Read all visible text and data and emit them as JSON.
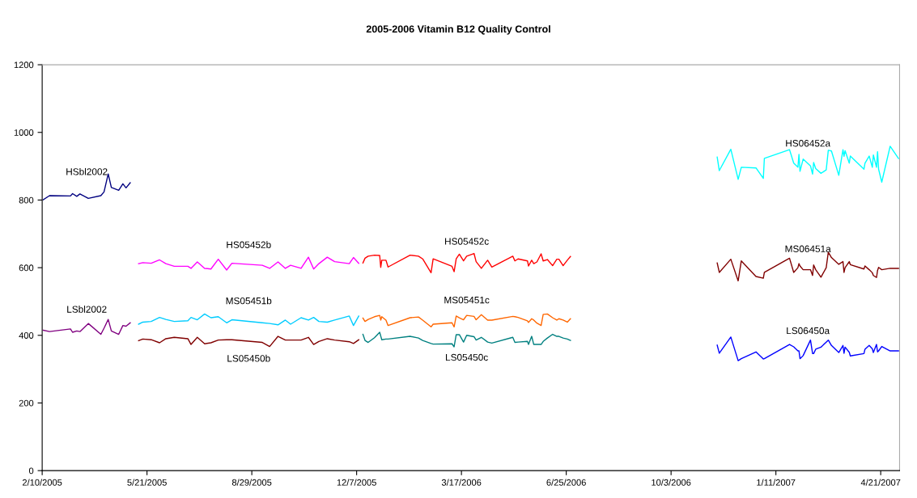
{
  "chart_data": {
    "type": "line",
    "title": "2005-2006 Vitamin B12 Quality Control",
    "xlim": [
      "2005-02-10",
      "2007-05-09"
    ],
    "ylim": [
      0,
      1200
    ],
    "yticks": [
      0,
      200,
      400,
      600,
      800,
      1000,
      1200
    ],
    "xticks": [
      {
        "value": "2005-02-10",
        "label": "2/10/2005"
      },
      {
        "value": "2005-05-21",
        "label": "5/21/2005"
      },
      {
        "value": "2005-08-29",
        "label": "8/29/2005"
      },
      {
        "value": "2005-12-07",
        "label": "12/7/2005"
      },
      {
        "value": "2006-03-17",
        "label": "3/17/2006"
      },
      {
        "value": "2006-06-25",
        "label": "6/25/2006"
      },
      {
        "value": "2006-10-03",
        "label": "10/3/2006"
      },
      {
        "value": "2007-01-11",
        "label": "1/11/2007"
      },
      {
        "value": "2007-04-21",
        "label": "4/21/2007"
      }
    ],
    "grid": false,
    "legend": false,
    "marker": "none",
    "line_style": "solid",
    "series": [
      {
        "name": "HSbl2002",
        "color": "#000080",
        "x": [
          "2005-02-11",
          "2005-02-17",
          "2005-03-09",
          "2005-03-11",
          "2005-03-15",
          "2005-03-18",
          "2005-03-26",
          "2005-04-07",
          "2005-04-10",
          "2005-04-14",
          "2005-04-17",
          "2005-04-24",
          "2005-04-28",
          "2005-05-01",
          "2005-05-05"
        ],
        "values": [
          801,
          813,
          812,
          819,
          811,
          818,
          805,
          813,
          824,
          877,
          837,
          829,
          848,
          836,
          851
        ]
      },
      {
        "name": "LSbl2002",
        "color": "#800080",
        "x": [
          "2005-02-11",
          "2005-02-17",
          "2005-03-09",
          "2005-03-11",
          "2005-03-15",
          "2005-03-18",
          "2005-03-26",
          "2005-04-07",
          "2005-04-10",
          "2005-04-14",
          "2005-04-17",
          "2005-04-24",
          "2005-04-28",
          "2005-05-01",
          "2005-05-05"
        ],
        "values": [
          415,
          411,
          419,
          409,
          413,
          411,
          435,
          403,
          421,
          447,
          413,
          403,
          429,
          427,
          437
        ]
      },
      {
        "name": "HS05452b",
        "color": "#ff00ff",
        "x": [
          "2005-05-13",
          "2005-05-17",
          "2005-05-25",
          "2005-06-02",
          "2005-06-08",
          "2005-06-16",
          "2005-06-29",
          "2005-07-02",
          "2005-07-08",
          "2005-07-15",
          "2005-07-21",
          "2005-07-28",
          "2005-08-05",
          "2005-08-10",
          "2005-09-08",
          "2005-09-15",
          "2005-09-23",
          "2005-09-30",
          "2005-10-05",
          "2005-10-15",
          "2005-10-22",
          "2005-10-27",
          "2005-11-01",
          "2005-11-09",
          "2005-11-16",
          "2005-11-30",
          "2005-12-04",
          "2005-12-09"
        ],
        "values": [
          612,
          615,
          613,
          623,
          612,
          604,
          604,
          598,
          617,
          598,
          596,
          625,
          593,
          613,
          607,
          598,
          617,
          598,
          607,
          598,
          631,
          596,
          612,
          631,
          618,
          612,
          630,
          613
        ]
      },
      {
        "name": "MS05451b",
        "color": "#00ccff",
        "x": [
          "2005-05-13",
          "2005-05-17",
          "2005-05-25",
          "2005-06-02",
          "2005-06-08",
          "2005-06-16",
          "2005-06-29",
          "2005-07-02",
          "2005-07-08",
          "2005-07-15",
          "2005-07-21",
          "2005-07-28",
          "2005-08-05",
          "2005-08-10",
          "2005-09-08",
          "2005-09-15",
          "2005-09-23",
          "2005-09-30",
          "2005-10-05",
          "2005-10-15",
          "2005-10-22",
          "2005-10-27",
          "2005-11-01",
          "2005-11-09",
          "2005-11-16",
          "2005-11-30",
          "2005-12-04",
          "2005-12-09"
        ],
        "values": [
          433,
          439,
          441,
          453,
          447,
          441,
          443,
          453,
          446,
          463,
          452,
          455,
          437,
          446,
          437,
          435,
          431,
          445,
          433,
          452,
          445,
          453,
          441,
          439,
          445,
          457,
          429,
          457
        ]
      },
      {
        "name": "LS05450b",
        "color": "#800000",
        "x": [
          "2005-05-13",
          "2005-05-17",
          "2005-05-25",
          "2005-06-02",
          "2005-06-08",
          "2005-06-16",
          "2005-06-29",
          "2005-07-02",
          "2005-07-08",
          "2005-07-15",
          "2005-07-21",
          "2005-07-28",
          "2005-08-05",
          "2005-08-10",
          "2005-09-08",
          "2005-09-15",
          "2005-09-23",
          "2005-09-30",
          "2005-10-05",
          "2005-10-15",
          "2005-10-22",
          "2005-10-27",
          "2005-11-01",
          "2005-11-09",
          "2005-11-16",
          "2005-11-30",
          "2005-12-04",
          "2005-12-09"
        ],
        "values": [
          384,
          389,
          387,
          378,
          390,
          394,
          390,
          373,
          394,
          375,
          378,
          386,
          387,
          387,
          379,
          367,
          397,
          386,
          386,
          386,
          394,
          373,
          382,
          390,
          386,
          381,
          376,
          387
        ]
      },
      {
        "name": "HS05452c",
        "color": "#ff0000",
        "x": [
          "2005-12-13",
          "2005-12-15",
          "2005-12-18",
          "2005-12-24",
          "2005-12-29",
          "2005-12-30",
          "2005-12-31",
          "2006-01-04",
          "2006-01-06",
          "2006-01-27",
          "2006-02-04",
          "2006-02-08",
          "2006-02-16",
          "2006-02-18",
          "2006-03-08",
          "2006-03-10",
          "2006-03-12",
          "2006-03-15",
          "2006-03-19",
          "2006-03-22",
          "2006-03-29",
          "2006-03-31",
          "2006-04-05",
          "2006-04-11",
          "2006-04-15",
          "2006-05-05",
          "2006-05-07",
          "2006-05-10",
          "2006-05-19",
          "2006-05-20",
          "2006-05-23",
          "2006-05-25",
          "2006-05-28",
          "2006-06-01",
          "2006-06-03",
          "2006-06-07",
          "2006-06-12",
          "2006-06-16",
          "2006-06-18",
          "2006-06-22",
          "2006-06-26",
          "2006-06-29"
        ],
        "values": [
          614,
          628,
          634,
          637,
          636,
          601,
          622,
          622,
          602,
          637,
          634,
          626,
          585,
          626,
          604,
          588,
          626,
          640,
          620,
          634,
          642,
          618,
          598,
          622,
          602,
          634,
          620,
          626,
          620,
          605,
          622,
          612,
          617,
          641,
          620,
          624,
          606,
          625,
          625,
          606,
          622,
          633
        ]
      },
      {
        "name": "MS05451c",
        "color": "#ff6600",
        "x": [
          "2005-12-13",
          "2005-12-15",
          "2005-12-18",
          "2005-12-24",
          "2005-12-29",
          "2005-12-30",
          "2005-12-31",
          "2006-01-04",
          "2006-01-06",
          "2006-01-27",
          "2006-02-04",
          "2006-02-08",
          "2006-02-16",
          "2006-02-18",
          "2006-03-08",
          "2006-03-10",
          "2006-03-12",
          "2006-03-15",
          "2006-03-19",
          "2006-03-22",
          "2006-03-29",
          "2006-03-31",
          "2006-04-05",
          "2006-04-11",
          "2006-04-15",
          "2006-05-05",
          "2006-05-07",
          "2006-05-10",
          "2006-05-19",
          "2006-05-20",
          "2006-05-23",
          "2006-05-25",
          "2006-05-28",
          "2006-06-01",
          "2006-06-03",
          "2006-06-07",
          "2006-06-12",
          "2006-06-16",
          "2006-06-18",
          "2006-06-22",
          "2006-06-26",
          "2006-06-29"
        ],
        "values": [
          451,
          441,
          447,
          455,
          459,
          445,
          455,
          445,
          429,
          452,
          454,
          445,
          425,
          433,
          437,
          425,
          457,
          452,
          446,
          459,
          456,
          446,
          461,
          445,
          445,
          456,
          455,
          453,
          443,
          438,
          449,
          445,
          436,
          429,
          462,
          463,
          452,
          445,
          449,
          445,
          439,
          449
        ]
      },
      {
        "name": "LS05450c",
        "color": "#008080",
        "x": [
          "2005-12-13",
          "2005-12-15",
          "2005-12-18",
          "2005-12-24",
          "2005-12-29",
          "2005-12-30",
          "2005-12-31",
          "2006-01-04",
          "2006-01-06",
          "2006-01-27",
          "2006-02-04",
          "2006-02-08",
          "2006-02-16",
          "2006-02-18",
          "2006-03-08",
          "2006-03-10",
          "2006-03-12",
          "2006-03-15",
          "2006-03-19",
          "2006-03-22",
          "2006-03-29",
          "2006-03-31",
          "2006-04-05",
          "2006-04-11",
          "2006-04-15",
          "2006-05-05",
          "2006-05-07",
          "2006-05-10",
          "2006-05-19",
          "2006-05-20",
          "2006-05-23",
          "2006-05-25",
          "2006-05-28",
          "2006-06-01",
          "2006-06-03",
          "2006-06-07",
          "2006-06-12",
          "2006-06-16",
          "2006-06-18",
          "2006-06-22",
          "2006-06-26",
          "2006-06-29"
        ],
        "values": [
          403,
          385,
          379,
          393,
          409,
          398,
          387,
          389,
          389,
          397,
          392,
          385,
          376,
          374,
          375,
          366,
          402,
          402,
          380,
          400,
          396,
          386,
          394,
          380,
          377,
          394,
          379,
          380,
          382,
          373,
          397,
          373,
          373,
          373,
          382,
          392,
          403,
          397,
          397,
          392,
          389,
          385
        ]
      },
      {
        "name": "HS06452a",
        "color": "#00ffff",
        "x": [
          "2006-11-16",
          "2006-11-18",
          "2006-11-29",
          "2006-12-06",
          "2006-12-09",
          "2006-12-23",
          "2006-12-30",
          "2006-12-31",
          "2007-01-24",
          "2007-01-28",
          "2007-02-01",
          "2007-02-02",
          "2007-02-03",
          "2007-02-06",
          "2007-02-13",
          "2007-02-15",
          "2007-02-16",
          "2007-02-18",
          "2007-02-23",
          "2007-02-28",
          "2007-03-02",
          "2007-03-05",
          "2007-03-12",
          "2007-03-16",
          "2007-03-17",
          "2007-03-18",
          "2007-03-22",
          "2007-03-23",
          "2007-04-05",
          "2007-04-06",
          "2007-04-10",
          "2007-04-13",
          "2007-04-14",
          "2007-04-17",
          "2007-04-18",
          "2007-04-19",
          "2007-04-22",
          "2007-04-30",
          "2007-05-08"
        ],
        "values": [
          927,
          887,
          950,
          861,
          897,
          895,
          864,
          923,
          949,
          909,
          897,
          935,
          885,
          921,
          901,
          877,
          911,
          893,
          879,
          889,
          947,
          945,
          873,
          949,
          929,
          946,
          909,
          930,
          891,
          909,
          930,
          897,
          933,
          897,
          943,
          891,
          853,
          959,
          923
        ]
      },
      {
        "name": "MS06451a",
        "color": "#800000",
        "x": [
          "2006-11-16",
          "2006-11-18",
          "2006-11-29",
          "2006-12-06",
          "2006-12-09",
          "2006-12-23",
          "2006-12-30",
          "2006-12-31",
          "2007-01-24",
          "2007-01-28",
          "2007-02-01",
          "2007-02-02",
          "2007-02-03",
          "2007-02-06",
          "2007-02-13",
          "2007-02-15",
          "2007-02-16",
          "2007-02-18",
          "2007-02-23",
          "2007-02-28",
          "2007-03-02",
          "2007-03-05",
          "2007-03-12",
          "2007-03-16",
          "2007-03-17",
          "2007-03-18",
          "2007-03-22",
          "2007-03-23",
          "2007-04-05",
          "2007-04-06",
          "2007-04-10",
          "2007-04-13",
          "2007-04-14",
          "2007-04-17",
          "2007-04-18",
          "2007-04-19",
          "2007-04-22",
          "2007-04-30",
          "2007-05-08"
        ],
        "values": [
          614,
          586,
          625,
          561,
          620,
          574,
          569,
          586,
          628,
          586,
          600,
          612,
          605,
          594,
          594,
          577,
          608,
          594,
          572,
          600,
          646,
          630,
          610,
          618,
          586,
          600,
          618,
          609,
          596,
          605,
          594,
          585,
          577,
          571,
          592,
          601,
          594,
          598,
          598
        ]
      },
      {
        "name": "LS06450a",
        "color": "#0000ff",
        "x": [
          "2006-11-16",
          "2006-11-18",
          "2006-11-29",
          "2006-12-06",
          "2006-12-09",
          "2006-12-23",
          "2006-12-30",
          "2006-12-31",
          "2007-01-24",
          "2007-01-28",
          "2007-02-01",
          "2007-02-02",
          "2007-02-03",
          "2007-02-06",
          "2007-02-13",
          "2007-02-15",
          "2007-02-16",
          "2007-02-18",
          "2007-02-23",
          "2007-02-28",
          "2007-03-02",
          "2007-03-05",
          "2007-03-12",
          "2007-03-16",
          "2007-03-17",
          "2007-03-18",
          "2007-03-22",
          "2007-03-23",
          "2007-04-05",
          "2007-04-06",
          "2007-04-10",
          "2007-04-13",
          "2007-04-14",
          "2007-04-17",
          "2007-04-18",
          "2007-04-19",
          "2007-04-22",
          "2007-04-30",
          "2007-05-08"
        ],
        "values": [
          371,
          347,
          395,
          325,
          331,
          351,
          330,
          331,
          373,
          366,
          354,
          354,
          331,
          340,
          386,
          346,
          346,
          359,
          365,
          380,
          386,
          370,
          349,
          370,
          347,
          365,
          350,
          339,
          346,
          359,
          370,
          360,
          349,
          373,
          351,
          354,
          367,
          354,
          354
        ]
      }
    ]
  }
}
